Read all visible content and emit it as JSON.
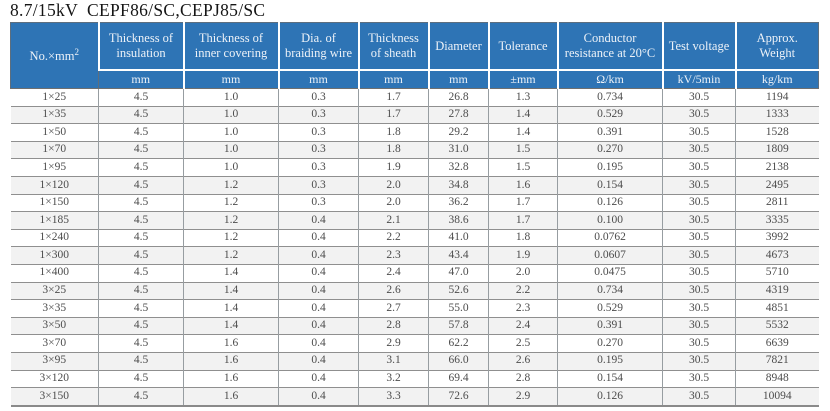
{
  "title": "8.7/15kV  CEPF86/SC,CEPJ85/SC",
  "colors": {
    "header_bg": "#2E74B5",
    "header_text": "#EDF2F8",
    "row_stripe": "#F2F2F2",
    "rule_gray": "#8F8F8F",
    "body_text": "#4C4C4C"
  },
  "table": {
    "corner": {
      "label_base": "No.×mm",
      "label_sup": "2"
    },
    "columns": [
      {
        "label": "Thickness of insulation",
        "unit": "mm"
      },
      {
        "label": "Thickness of inner covering",
        "unit": "mm"
      },
      {
        "label": "Dia. of braiding wire",
        "unit": "mm"
      },
      {
        "label": "Thickness of sheath",
        "unit": "mm"
      },
      {
        "label": "Diameter",
        "unit": "mm"
      },
      {
        "label": "Tolerance",
        "unit": "±mm"
      },
      {
        "label": "Conductor resistance at 20°C",
        "unit": "Ω/km"
      },
      {
        "label": "Test voltage",
        "unit": "kV/5min"
      },
      {
        "label": "Approx. Weight",
        "unit": "kg/km"
      }
    ],
    "rows": [
      [
        "1×25",
        "4.5",
        "1.0",
        "0.3",
        "1.7",
        "26.8",
        "1.3",
        "0.734",
        "30.5",
        "1194"
      ],
      [
        "1×35",
        "4.5",
        "1.0",
        "0.3",
        "1.7",
        "27.8",
        "1.4",
        "0.529",
        "30.5",
        "1333"
      ],
      [
        "1×50",
        "4.5",
        "1.0",
        "0.3",
        "1.8",
        "29.2",
        "1.4",
        "0.391",
        "30.5",
        "1528"
      ],
      [
        "1×70",
        "4.5",
        "1.0",
        "0.3",
        "1.8",
        "31.0",
        "1.5",
        "0.270",
        "30.5",
        "1809"
      ],
      [
        "1×95",
        "4.5",
        "1.0",
        "0.3",
        "1.9",
        "32.8",
        "1.5",
        "0.195",
        "30.5",
        "2138"
      ],
      [
        "1×120",
        "4.5",
        "1.2",
        "0.3",
        "2.0",
        "34.8",
        "1.6",
        "0.154",
        "30.5",
        "2495"
      ],
      [
        "1×150",
        "4.5",
        "1.2",
        "0.3",
        "2.0",
        "36.2",
        "1.7",
        "0.126",
        "30.5",
        "2811"
      ],
      [
        "1×185",
        "4.5",
        "1.2",
        "0.4",
        "2.1",
        "38.6",
        "1.7",
        "0.100",
        "30.5",
        "3335"
      ],
      [
        "1×240",
        "4.5",
        "1.2",
        "0.4",
        "2.2",
        "41.0",
        "1.8",
        "0.0762",
        "30.5",
        "3992"
      ],
      [
        "1×300",
        "4.5",
        "1.2",
        "0.4",
        "2.3",
        "43.4",
        "1.9",
        "0.0607",
        "30.5",
        "4673"
      ],
      [
        "1×400",
        "4.5",
        "1.4",
        "0.4",
        "2.4",
        "47.0",
        "2.0",
        "0.0475",
        "30.5",
        "5710"
      ],
      [
        "3×25",
        "4.5",
        "1.4",
        "0.4",
        "2.6",
        "52.6",
        "2.2",
        "0.734",
        "30.5",
        "4319"
      ],
      [
        "3×35",
        "4.5",
        "1.4",
        "0.4",
        "2.7",
        "55.0",
        "2.3",
        "0.529",
        "30.5",
        "4851"
      ],
      [
        "3×50",
        "4.5",
        "1.4",
        "0.4",
        "2.8",
        "57.8",
        "2.4",
        "0.391",
        "30.5",
        "5532"
      ],
      [
        "3×70",
        "4.5",
        "1.6",
        "0.4",
        "2.9",
        "62.2",
        "2.5",
        "0.270",
        "30.5",
        "6639"
      ],
      [
        "3×95",
        "4.5",
        "1.6",
        "0.4",
        "3.1",
        "66.0",
        "2.6",
        "0.195",
        "30.5",
        "7821"
      ],
      [
        "3×120",
        "4.5",
        "1.6",
        "0.4",
        "3.2",
        "69.4",
        "2.8",
        "0.154",
        "30.5",
        "8948"
      ],
      [
        "3×150",
        "4.5",
        "1.6",
        "0.4",
        "3.3",
        "72.6",
        "2.9",
        "0.126",
        "30.5",
        "10094"
      ]
    ]
  }
}
